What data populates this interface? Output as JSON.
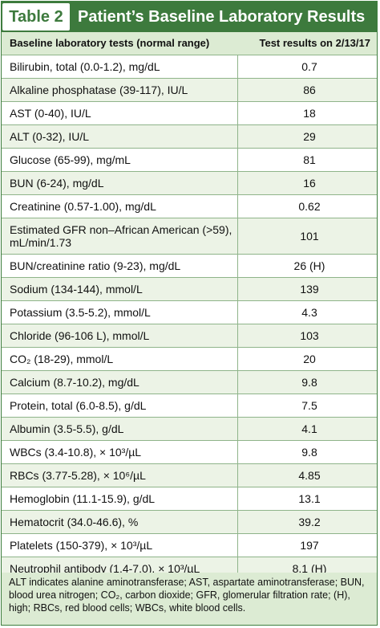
{
  "title": {
    "tag": "Table 2",
    "text": "Patient’s Baseline Laboratory Results"
  },
  "table": {
    "headers": [
      "Baseline laboratory tests (normal range)",
      "Test results on 2/13/17"
    ],
    "rows": [
      {
        "label": "Bilirubin, total (0.0-1.2), mg/dL",
        "value": "0.7"
      },
      {
        "label": "Alkaline phosphatase (39-117), IU/L",
        "value": "86"
      },
      {
        "label": "AST (0-40), IU/L",
        "value": "18"
      },
      {
        "label": "ALT (0-32), IU/L",
        "value": "29"
      },
      {
        "label": "Glucose (65-99), mg/mL",
        "value": "81"
      },
      {
        "label": "BUN (6-24), mg/dL",
        "value": "16"
      },
      {
        "label": "Creatinine (0.57-1.00), mg/dL",
        "value": "0.62"
      },
      {
        "label": "Estimated GFR non–African American (>59), mL/min/1.73",
        "value": "101"
      },
      {
        "label": "BUN/creatinine ratio (9-23), mg/dL",
        "value": "26 (H)"
      },
      {
        "label": "Sodium (134-144), mmol/L",
        "value": "139"
      },
      {
        "label": "Potassium (3.5-5.2), mmol/L",
        "value": "4.3"
      },
      {
        "label": "Chloride (96-106 L), mmol/L",
        "value": "103"
      },
      {
        "label": "CO₂ (18-29), mmol/L",
        "value": "20"
      },
      {
        "label": "Calcium (8.7-10.2), mg/dL",
        "value": "9.8"
      },
      {
        "label": "Protein, total (6.0-8.5), g/dL",
        "value": "7.5"
      },
      {
        "label": "Albumin (3.5-5.5), g/dL",
        "value": "4.1"
      },
      {
        "label": "WBCs (3.4-10.8), × 10³/µL",
        "value": "9.8"
      },
      {
        "label": "RBCs (3.77-5.28), × 10⁶/µL",
        "value": "4.85"
      },
      {
        "label": "Hemoglobin (11.1-15.9), g/dL",
        "value": "13.1"
      },
      {
        "label": "Hematocrit (34.0-46.6), %",
        "value": "39.2"
      },
      {
        "label": "Platelets (150-379), × 10³/µL",
        "value": "197"
      },
      {
        "label": "Neutrophil antibody (1.4-7.0), × 10³/µL",
        "value": "8.1 (H)"
      }
    ]
  },
  "footnote": "ALT indicates alanine aminotransferase; AST, aspartate aminotransferase; BUN, blood urea nitrogen; CO₂, carbon dioxide; GFR, glomerular filtration rate; (H), high; RBCs, red blood cells; WBCs, white blood cells."
}
